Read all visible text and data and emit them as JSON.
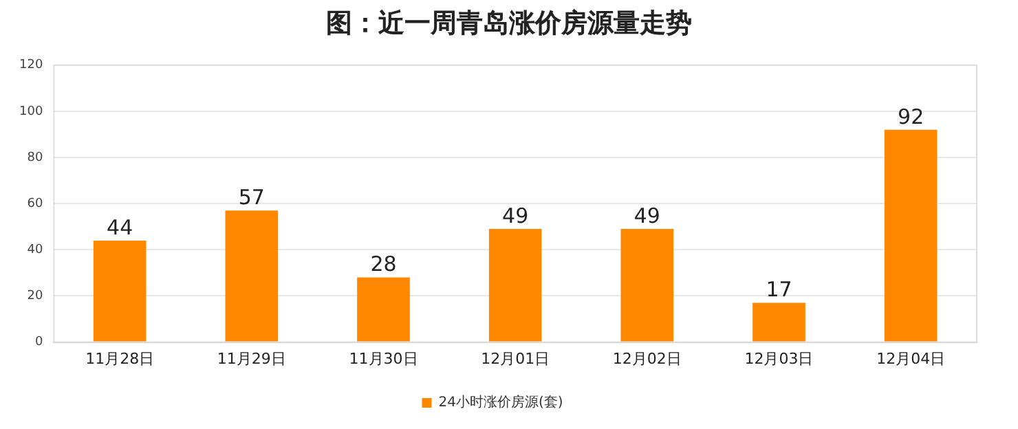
{
  "chart_data": {
    "type": "bar",
    "title": "图：近一周青岛涨价房源量走势",
    "categories": [
      "11月28日",
      "11月29日",
      "11月30日",
      "12月01日",
      "12月02日",
      "12月03日",
      "12月04日"
    ],
    "series": [
      {
        "name": "24小时涨价房源(套)",
        "color": "#ff8800",
        "values": [
          44,
          57,
          28,
          49,
          49,
          17,
          92
        ]
      }
    ],
    "ylim": [
      0,
      120
    ],
    "yticks": [
      0,
      20,
      40,
      60,
      80,
      100,
      120
    ],
    "grid": "y",
    "legend": "bottom",
    "data_labels": true
  }
}
